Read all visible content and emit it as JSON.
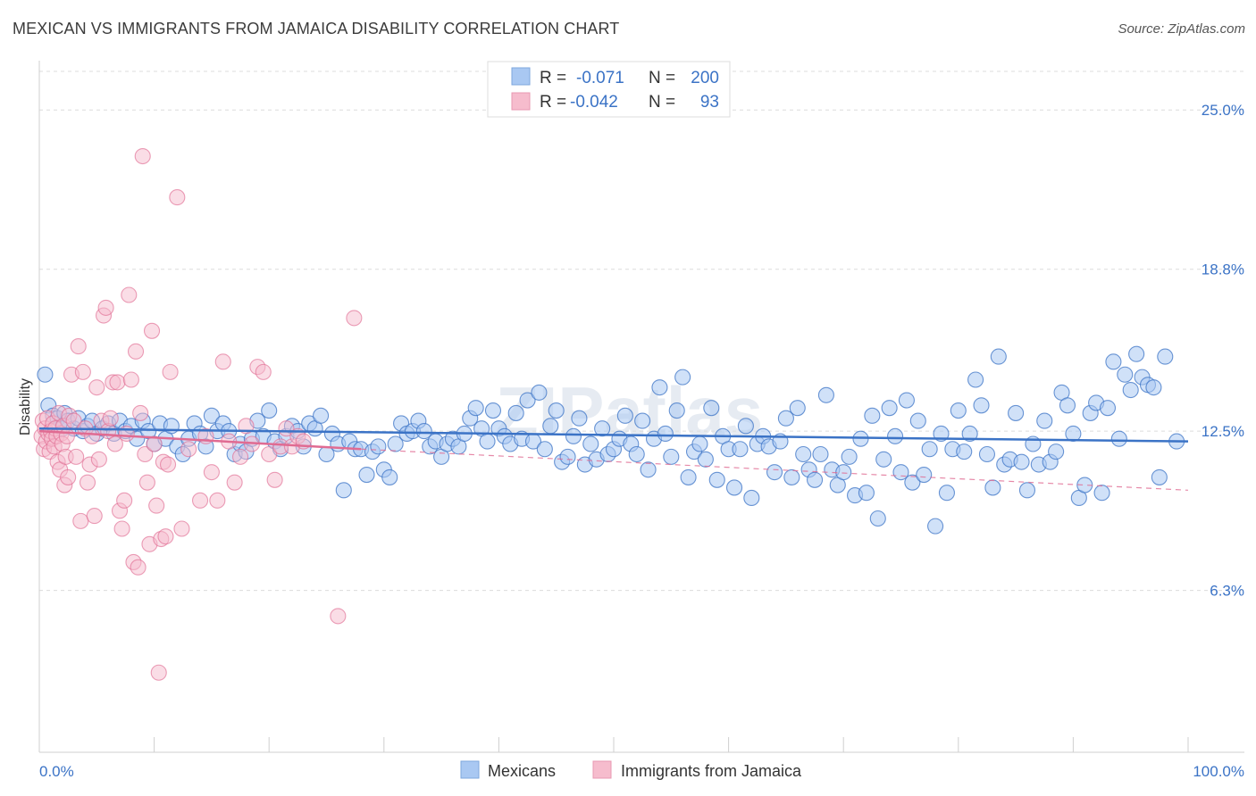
{
  "title": "MEXICAN VS IMMIGRANTS FROM JAMAICA DISABILITY CORRELATION CHART",
  "source": "Source: ZipAtlas.com",
  "watermark": "ZIPatlas",
  "colors": {
    "blue": "#3b73c6",
    "blue_fill": "#a9c8f2",
    "pink": "#e06b92",
    "pink_fill": "#f6bccd",
    "grid": "#dcdcdc"
  },
  "legend": {
    "rows": [
      {
        "r_label": "R =",
        "r_value": "-0.071",
        "n_label": "N =",
        "n_value": "200",
        "series": "Mexicans"
      },
      {
        "r_label": "R =",
        "r_value": "-0.042",
        "n_label": "N =",
        "n_value": "93",
        "series": "Immigrants from Jamaica"
      }
    ]
  },
  "chart_data": {
    "type": "scatter",
    "title": "MEXICAN VS IMMIGRANTS FROM JAMAICA DISABILITY CORRELATION CHART",
    "xlabel": "",
    "ylabel": "Disability",
    "xlim": [
      0,
      100
    ],
    "ylim": [
      0,
      26.5
    ],
    "x_tick_labels": [
      "0.0%",
      "100.0%"
    ],
    "y_ticks": [
      6.3,
      12.5,
      18.8,
      25.0
    ],
    "y_tick_labels": [
      "6.3%",
      "12.5%",
      "18.8%",
      "25.0%"
    ],
    "grid": "horizontal dashed",
    "legend_position": "top-center and bottom",
    "series": [
      {
        "name": "Mexicans",
        "color": "#3b73c6",
        "trend": {
          "x": [
            0,
            100
          ],
          "y": [
            12.6,
            12.1
          ]
        },
        "points": [
          [
            0.5,
            14.7
          ],
          [
            0.8,
            13.5
          ],
          [
            1.2,
            13.1
          ],
          [
            1.6,
            13.0
          ],
          [
            2.0,
            12.6
          ],
          [
            2.2,
            13.2
          ],
          [
            2.5,
            12.9
          ],
          [
            3.0,
            12.6
          ],
          [
            3.4,
            13.0
          ],
          [
            3.8,
            12.5
          ],
          [
            4.2,
            12.7
          ],
          [
            4.6,
            12.9
          ],
          [
            5.0,
            12.4
          ],
          [
            5.5,
            12.6
          ],
          [
            6.0,
            12.8
          ],
          [
            6.5,
            12.4
          ],
          [
            7.0,
            12.9
          ],
          [
            7.5,
            12.5
          ],
          [
            8.0,
            12.7
          ],
          [
            8.5,
            12.2
          ],
          [
            9.0,
            12.9
          ],
          [
            9.5,
            12.5
          ],
          [
            10.0,
            12.0
          ],
          [
            10.5,
            12.8
          ],
          [
            11.0,
            12.2
          ],
          [
            11.5,
            12.7
          ],
          [
            12.0,
            11.9
          ],
          [
            12.5,
            11.6
          ],
          [
            13.0,
            12.2
          ],
          [
            13.5,
            12.8
          ],
          [
            14.0,
            12.4
          ],
          [
            14.5,
            11.9
          ],
          [
            15.0,
            13.1
          ],
          [
            15.5,
            12.5
          ],
          [
            16.0,
            12.8
          ],
          [
            16.5,
            12.5
          ],
          [
            17.0,
            11.6
          ],
          [
            17.5,
            12.0
          ],
          [
            18.0,
            11.7
          ],
          [
            18.5,
            12.2
          ],
          [
            19.0,
            12.9
          ],
          [
            19.5,
            12.3
          ],
          [
            20.0,
            13.3
          ],
          [
            20.5,
            12.1
          ],
          [
            21.0,
            11.8
          ],
          [
            21.5,
            12.3
          ],
          [
            22.0,
            12.7
          ],
          [
            22.5,
            12.5
          ],
          [
            23.0,
            11.9
          ],
          [
            23.5,
            12.8
          ],
          [
            24.0,
            12.6
          ],
          [
            24.5,
            13.1
          ],
          [
            25.0,
            11.6
          ],
          [
            25.5,
            12.4
          ],
          [
            26.0,
            12.0
          ],
          [
            26.5,
            10.2
          ],
          [
            27.0,
            12.1
          ],
          [
            27.5,
            11.8
          ],
          [
            28.0,
            11.8
          ],
          [
            28.5,
            10.8
          ],
          [
            29.0,
            11.7
          ],
          [
            29.5,
            11.9
          ],
          [
            30.0,
            11.0
          ],
          [
            30.5,
            10.7
          ],
          [
            31.0,
            12.0
          ],
          [
            31.5,
            12.8
          ],
          [
            32.0,
            12.4
          ],
          [
            32.5,
            12.5
          ],
          [
            33.0,
            12.9
          ],
          [
            33.5,
            12.5
          ],
          [
            34.0,
            11.9
          ],
          [
            34.5,
            12.1
          ],
          [
            35.0,
            11.5
          ],
          [
            35.5,
            12.0
          ],
          [
            36.0,
            12.2
          ],
          [
            36.5,
            11.9
          ],
          [
            37.0,
            12.4
          ],
          [
            37.5,
            13.0
          ],
          [
            38.0,
            13.4
          ],
          [
            38.5,
            12.6
          ],
          [
            39.0,
            12.1
          ],
          [
            39.5,
            13.3
          ],
          [
            40.0,
            12.6
          ],
          [
            40.5,
            12.3
          ],
          [
            41.0,
            12.0
          ],
          [
            41.5,
            13.2
          ],
          [
            42.0,
            12.2
          ],
          [
            42.5,
            13.7
          ],
          [
            43.0,
            12.1
          ],
          [
            43.5,
            14.0
          ],
          [
            44.0,
            11.8
          ],
          [
            44.5,
            12.7
          ],
          [
            45.0,
            13.3
          ],
          [
            45.5,
            11.3
          ],
          [
            46.0,
            11.5
          ],
          [
            46.5,
            12.3
          ],
          [
            47.0,
            13.0
          ],
          [
            47.5,
            11.2
          ],
          [
            48.0,
            12.0
          ],
          [
            48.5,
            11.4
          ],
          [
            49.0,
            12.6
          ],
          [
            49.5,
            11.6
          ],
          [
            50.0,
            11.8
          ],
          [
            50.5,
            12.2
          ],
          [
            51.0,
            13.1
          ],
          [
            51.5,
            12.0
          ],
          [
            52.0,
            11.6
          ],
          [
            52.5,
            12.9
          ],
          [
            53.0,
            11.0
          ],
          [
            53.5,
            12.2
          ],
          [
            54.0,
            14.2
          ],
          [
            54.5,
            12.4
          ],
          [
            55.0,
            11.5
          ],
          [
            55.5,
            13.3
          ],
          [
            56.0,
            14.6
          ],
          [
            56.5,
            10.7
          ],
          [
            57.0,
            11.7
          ],
          [
            57.5,
            12.0
          ],
          [
            58.0,
            11.4
          ],
          [
            58.5,
            13.4
          ],
          [
            59.0,
            10.6
          ],
          [
            59.5,
            12.3
          ],
          [
            60.0,
            11.8
          ],
          [
            60.5,
            10.3
          ],
          [
            61.0,
            11.8
          ],
          [
            61.5,
            12.7
          ],
          [
            62.0,
            9.9
          ],
          [
            62.5,
            12.0
          ],
          [
            63.0,
            12.3
          ],
          [
            63.5,
            11.9
          ],
          [
            64.0,
            10.9
          ],
          [
            64.5,
            12.1
          ],
          [
            65.0,
            13.0
          ],
          [
            65.5,
            10.7
          ],
          [
            66.0,
            13.4
          ],
          [
            66.5,
            11.6
          ],
          [
            67.0,
            11.0
          ],
          [
            67.5,
            10.6
          ],
          [
            68.0,
            11.6
          ],
          [
            68.5,
            13.9
          ],
          [
            69.0,
            11.0
          ],
          [
            69.5,
            10.4
          ],
          [
            70.0,
            10.9
          ],
          [
            70.5,
            11.5
          ],
          [
            71.0,
            10.0
          ],
          [
            71.5,
            12.2
          ],
          [
            72.0,
            10.1
          ],
          [
            72.5,
            13.1
          ],
          [
            73.0,
            9.1
          ],
          [
            73.5,
            11.4
          ],
          [
            74.0,
            13.4
          ],
          [
            74.5,
            12.3
          ],
          [
            75.0,
            10.9
          ],
          [
            75.5,
            13.7
          ],
          [
            76.0,
            10.5
          ],
          [
            76.5,
            12.9
          ],
          [
            77.0,
            10.8
          ],
          [
            77.5,
            11.8
          ],
          [
            78.0,
            8.8
          ],
          [
            78.5,
            12.4
          ],
          [
            79.0,
            10.1
          ],
          [
            79.5,
            11.8
          ],
          [
            80.0,
            13.3
          ],
          [
            80.5,
            11.7
          ],
          [
            81.0,
            12.4
          ],
          [
            81.5,
            14.5
          ],
          [
            82.0,
            13.5
          ],
          [
            82.5,
            11.6
          ],
          [
            83.0,
            10.3
          ],
          [
            83.5,
            15.4
          ],
          [
            84.0,
            11.2
          ],
          [
            84.5,
            11.4
          ],
          [
            85.0,
            13.2
          ],
          [
            85.5,
            11.3
          ],
          [
            86.0,
            10.2
          ],
          [
            86.5,
            12.0
          ],
          [
            87.0,
            11.2
          ],
          [
            87.5,
            12.9
          ],
          [
            88.0,
            11.3
          ],
          [
            88.5,
            11.7
          ],
          [
            89.0,
            14.0
          ],
          [
            89.5,
            13.5
          ],
          [
            90.0,
            12.4
          ],
          [
            90.5,
            9.9
          ],
          [
            91.0,
            10.4
          ],
          [
            91.5,
            13.2
          ],
          [
            92.0,
            13.6
          ],
          [
            92.5,
            10.1
          ],
          [
            93.0,
            13.4
          ],
          [
            93.5,
            15.2
          ],
          [
            94.0,
            12.2
          ],
          [
            94.5,
            14.7
          ],
          [
            95.0,
            14.1
          ],
          [
            95.5,
            15.5
          ],
          [
            96.0,
            14.6
          ],
          [
            96.5,
            14.3
          ],
          [
            97.0,
            14.2
          ],
          [
            97.5,
            10.7
          ],
          [
            98.0,
            15.4
          ],
          [
            99.0,
            12.1
          ]
        ]
      },
      {
        "name": "Immigrants from Jamaica",
        "color": "#e06b92",
        "trend": {
          "x": [
            0,
            28
          ],
          "y": [
            12.5,
            11.8
          ]
        },
        "trend_extension": {
          "x": [
            28,
            100
          ],
          "y": [
            11.8,
            10.2
          ]
        },
        "points": [
          [
            0.2,
            12.3
          ],
          [
            0.3,
            12.9
          ],
          [
            0.4,
            11.8
          ],
          [
            0.5,
            12.6
          ],
          [
            0.6,
            12.1
          ],
          [
            0.7,
            13.0
          ],
          [
            0.8,
            12.4
          ],
          [
            0.9,
            11.7
          ],
          [
            1.0,
            12.5
          ],
          [
            1.1,
            12.2
          ],
          [
            1.2,
            12.8
          ],
          [
            1.3,
            11.9
          ],
          [
            1.4,
            12.6
          ],
          [
            1.5,
            12.3
          ],
          [
            1.6,
            11.3
          ],
          [
            1.7,
            13.2
          ],
          [
            1.8,
            11.0
          ],
          [
            1.9,
            12.4
          ],
          [
            2.0,
            12.0
          ],
          [
            2.1,
            12.7
          ],
          [
            2.2,
            10.4
          ],
          [
            2.3,
            11.5
          ],
          [
            2.4,
            12.3
          ],
          [
            2.5,
            10.7
          ],
          [
            2.6,
            13.1
          ],
          [
            2.8,
            14.7
          ],
          [
            3.0,
            12.9
          ],
          [
            3.2,
            11.5
          ],
          [
            3.4,
            15.8
          ],
          [
            3.6,
            9.0
          ],
          [
            3.8,
            14.8
          ],
          [
            4.0,
            12.6
          ],
          [
            4.2,
            10.5
          ],
          [
            4.4,
            11.2
          ],
          [
            4.6,
            12.3
          ],
          [
            4.8,
            9.2
          ],
          [
            5.0,
            14.2
          ],
          [
            5.2,
            11.4
          ],
          [
            5.4,
            12.9
          ],
          [
            5.6,
            17.0
          ],
          [
            5.8,
            17.3
          ],
          [
            6.0,
            12.5
          ],
          [
            6.2,
            13.0
          ],
          [
            6.4,
            14.4
          ],
          [
            6.6,
            12.0
          ],
          [
            6.8,
            14.4
          ],
          [
            7.0,
            9.4
          ],
          [
            7.2,
            8.7
          ],
          [
            7.4,
            9.8
          ],
          [
            7.6,
            12.4
          ],
          [
            7.8,
            17.8
          ],
          [
            8.0,
            14.5
          ],
          [
            8.2,
            7.4
          ],
          [
            8.4,
            15.6
          ],
          [
            8.6,
            7.2
          ],
          [
            8.8,
            13.2
          ],
          [
            9.0,
            23.2
          ],
          [
            9.2,
            11.6
          ],
          [
            9.4,
            10.5
          ],
          [
            9.6,
            8.1
          ],
          [
            9.8,
            16.4
          ],
          [
            10.0,
            12.0
          ],
          [
            10.2,
            9.6
          ],
          [
            10.4,
            3.1
          ],
          [
            10.6,
            8.3
          ],
          [
            10.8,
            11.3
          ],
          [
            11.0,
            8.4
          ],
          [
            11.2,
            11.2
          ],
          [
            11.4,
            14.8
          ],
          [
            12.0,
            21.6
          ],
          [
            12.4,
            8.7
          ],
          [
            13.0,
            11.8
          ],
          [
            14.0,
            9.8
          ],
          [
            14.5,
            12.3
          ],
          [
            15.0,
            10.9
          ],
          [
            15.5,
            9.8
          ],
          [
            16.0,
            15.2
          ],
          [
            16.5,
            12.1
          ],
          [
            17.0,
            10.5
          ],
          [
            17.5,
            11.5
          ],
          [
            18.0,
            12.7
          ],
          [
            18.5,
            12.0
          ],
          [
            19.0,
            15.0
          ],
          [
            19.5,
            14.8
          ],
          [
            20.0,
            11.6
          ],
          [
            20.5,
            10.6
          ],
          [
            21.0,
            11.9
          ],
          [
            21.5,
            12.6
          ],
          [
            22.0,
            11.9
          ],
          [
            22.5,
            12.3
          ],
          [
            23.0,
            12.1
          ],
          [
            26.0,
            5.3
          ],
          [
            27.4,
            16.9
          ]
        ]
      }
    ]
  }
}
